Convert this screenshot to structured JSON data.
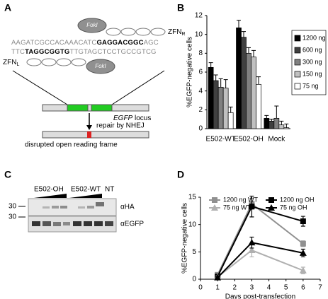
{
  "panel_labels": [
    "A",
    "B",
    "C",
    "D"
  ],
  "diagram": {
    "fok_right": "FokI",
    "fok_left": "FokI",
    "zfn_r": {
      "base": "ZFN",
      "sub": "R"
    },
    "zfn_l": {
      "base": "ZFN",
      "sub": "L"
    },
    "seq_top": [
      "AAGATCGCCACAAACATC",
      "GAGGACGGC",
      "AGC"
    ],
    "seq_bottom": [
      "TTC",
      "TAGGCGGTG",
      "TTGTAGCTCCTGCCGTCG"
    ],
    "locus": [
      "EGFP",
      " locus"
    ],
    "repair": "repair by NHEJ",
    "result": "disrupted open reading frame"
  },
  "blot": {
    "lanes": [
      "E502-OH",
      "E502-WT",
      "NT"
    ],
    "antibodies": [
      "αHA",
      "αEGFP"
    ],
    "marker": "30"
  },
  "chart_data": [
    {
      "type": "bar",
      "ylabel": "%EGFP-negative cells",
      "categories": [
        "E502-WT",
        "E502-OH",
        "Mock"
      ],
      "series": [
        {
          "name": "1200 ng",
          "color": "#000000",
          "values": [
            6.5,
            10.7,
            1.1
          ],
          "errors": [
            0.5,
            0.8,
            0.3
          ]
        },
        {
          "name": "600 ng",
          "color": "#404040",
          "values": [
            5.1,
            9.7,
            0.8
          ],
          "errors": [
            0.6,
            0.6,
            0.2
          ]
        },
        {
          "name": "300 ng",
          "color": "#808080",
          "values": [
            4.4,
            8.0,
            1.1
          ],
          "errors": [
            0.9,
            0.6,
            1.3
          ]
        },
        {
          "name": "150 ng",
          "color": "#c0c0c0",
          "values": [
            4.3,
            7.6,
            0.4
          ],
          "errors": [
            0.9,
            0.7,
            0.4
          ]
        },
        {
          "name": "75 ng",
          "color": "#ffffff",
          "values": [
            1.7,
            4.7,
            0.1
          ],
          "errors": [
            0.6,
            0.8,
            0.4
          ]
        }
      ],
      "ylim": [
        0,
        12
      ],
      "yticks": [
        0,
        2,
        4,
        6,
        8,
        10,
        12
      ],
      "legend": "right"
    },
    {
      "type": "line",
      "xlabel": "Days post-transfection",
      "ylabel": "%EGFP-negative cells",
      "x": [
        1,
        3,
        6
      ],
      "series": [
        {
          "name": "1200 ng WT",
          "color": "#909090",
          "marker": "square",
          "values": [
            0.8,
            13.8,
            6.5
          ],
          "errors": [
            0.3,
            1.0,
            0.5
          ]
        },
        {
          "name": "1200 ng OH",
          "color": "#000000",
          "marker": "square",
          "values": [
            0.5,
            13.3,
            10.6
          ],
          "errors": [
            0.2,
            1.9,
            0.9
          ]
        },
        {
          "name": "75 ng WT",
          "color": "#b0b0b0",
          "marker": "triangle",
          "values": [
            0.4,
            5.3,
            1.6
          ],
          "errors": [
            0.2,
            1.2,
            0.6
          ]
        },
        {
          "name": "75 ng OH",
          "color": "#000000",
          "marker": "triangle",
          "values": [
            0.3,
            6.7,
            4.8
          ],
          "errors": [
            0.2,
            1.0,
            0.7
          ]
        }
      ],
      "xlim": [
        0,
        7
      ],
      "xticks": [
        0,
        1,
        2,
        3,
        4,
        5,
        6,
        7
      ],
      "ylim": [
        0,
        15
      ],
      "yticks": [
        0,
        5,
        10,
        15
      ],
      "legend": "top"
    }
  ]
}
